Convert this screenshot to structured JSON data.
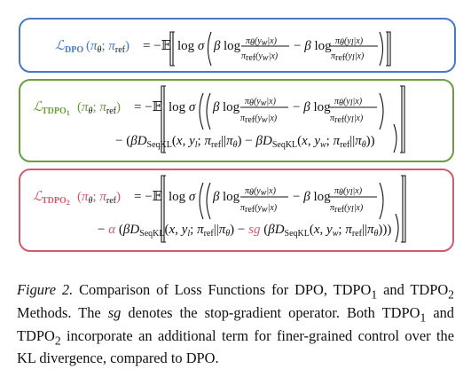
{
  "formulas": {
    "dpo": {
      "lhs": "ℒDPO(πθ; πref)",
      "rhs": "= −𝔼[log σ(β log πθ(yw|x)/πref(yw|x) − β log πθ(yl|x)/πref(yl|x))]",
      "color": "#4b78c6"
    },
    "tdpo1": {
      "lhs": "ℒTDPO1(πθ; πref)",
      "line1": "= −𝔼[log σ((β log πθ(yw|x)/πref(yw|x) − β log πθ(yl|x)/πref(yl|x))",
      "line2": "− (βDSeqKL(x, yl; πref||πθ) − βDSeqKL(x, yw; πref||πθ)))]",
      "color": "#6a9e3f"
    },
    "tdpo2": {
      "lhs": "ℒTDPO2(πθ; πref)",
      "line1": "= −𝔼[log σ((β log πθ(yw|x)/πref(yw|x) − β log πθ(yl|x)/πref(yl|x))",
      "line2": "− α(βDSeqKL(x, yl; πref||πθ) − sg(βDSeqKL(x, yw; πref||πθ))))]",
      "color": "#d35a6a"
    }
  },
  "caption": {
    "figure_label": "Figure 2.",
    "text_1": " Comparison of Loss Functions for DPO, TDPO",
    "sub_1": "1",
    "text_2": " and TDPO",
    "sub_2": "2",
    "text_3": " Methods.  The ",
    "sg": "sg",
    "text_4": " denotes the stop-gradient operator. Both TDPO",
    "sub_3": "1",
    "text_5": " and TDPO",
    "sub_4": "2",
    "text_6": " incorporate an additional term for finer-grained control over the KL divergence, compared to DPO."
  }
}
